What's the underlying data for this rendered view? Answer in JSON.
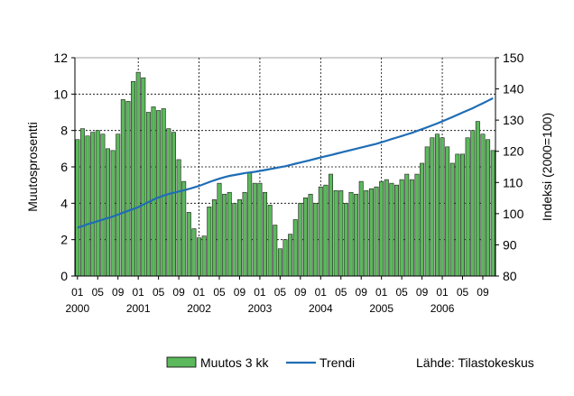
{
  "chart_data": {
    "type": "bar",
    "left_axis": {
      "label": "Muutosprosentti",
      "ticks": [
        "0",
        "2",
        "4",
        "6",
        "8",
        "10",
        "12"
      ],
      "ylim": [
        0,
        12
      ]
    },
    "right_axis": {
      "label": "Indeksi (2000=100)",
      "ticks": [
        "80",
        "90",
        "100",
        "110",
        "120",
        "130",
        "140",
        "150"
      ],
      "ylim": [
        80,
        150
      ]
    },
    "month_tick_labels": [
      "01",
      "05",
      "09"
    ],
    "years": [
      "2000",
      "2001",
      "2002",
      "2003",
      "2004",
      "2005",
      "2006"
    ],
    "grid": "dotted",
    "legend_position": "bottom",
    "series": [
      {
        "name": "Muutos 3 kk",
        "type": "bar",
        "axis": "left",
        "color": "#5cb85c",
        "values": [
          7.5,
          8.1,
          7.7,
          7.9,
          8.0,
          7.8,
          7.0,
          6.9,
          7.8,
          9.7,
          9.6,
          10.7,
          11.2,
          10.9,
          9.0,
          9.3,
          9.1,
          9.2,
          8.1,
          7.9,
          6.4,
          5.2,
          3.5,
          2.6,
          2.1,
          2.2,
          3.8,
          4.2,
          5.1,
          4.5,
          4.6,
          4.0,
          4.2,
          4.6,
          5.7,
          5.1,
          5.1,
          4.6,
          3.9,
          2.8,
          1.5,
          2.0,
          2.3,
          3.1,
          4.0,
          4.3,
          4.5,
          4.0,
          4.9,
          5.0,
          5.6,
          4.7,
          4.7,
          4.0,
          4.6,
          4.5,
          5.2,
          4.7,
          4.8,
          4.9,
          5.2,
          5.3,
          5.1,
          5.0,
          5.3,
          5.6,
          5.3,
          5.6,
          6.2,
          7.1,
          7.6,
          7.8,
          7.6,
          7.1,
          6.2,
          6.7,
          6.7,
          7.6,
          8.0,
          8.5,
          7.8,
          7.5,
          6.9
        ]
      },
      {
        "name": "Trendi",
        "type": "line",
        "axis": "right",
        "color": "#1f6db5",
        "values": [
          95.5,
          96.0,
          96.6,
          97.1,
          97.6,
          98.1,
          98.6,
          99.1,
          99.7,
          100.3,
          100.9,
          101.5,
          102.1,
          102.9,
          103.7,
          104.5,
          105.2,
          105.8,
          106.3,
          106.7,
          107.1,
          107.5,
          107.9,
          108.4,
          108.9,
          109.5,
          110.1,
          110.7,
          111.2,
          111.7,
          112.1,
          112.4,
          112.7,
          113.0,
          113.2,
          113.4,
          113.7,
          114.0,
          114.3,
          114.6,
          114.9,
          115.2,
          115.6,
          116.0,
          116.4,
          116.8,
          117.2,
          117.6,
          118.0,
          118.4,
          118.8,
          119.2,
          119.6,
          120.0,
          120.4,
          120.8,
          121.2,
          121.6,
          122.0,
          122.4,
          122.9,
          123.4,
          123.9,
          124.4,
          124.9,
          125.4,
          125.9,
          126.5,
          127.1,
          127.7,
          128.3,
          128.9,
          129.6,
          130.3,
          131.0,
          131.7,
          132.4,
          133.1,
          133.8,
          134.6,
          135.4,
          136.2,
          137.0
        ]
      }
    ]
  },
  "legend": {
    "bar_label": "Muutos 3 kk",
    "line_label": "Trendi"
  },
  "source_text": "Lähde: Tilastokeskus"
}
